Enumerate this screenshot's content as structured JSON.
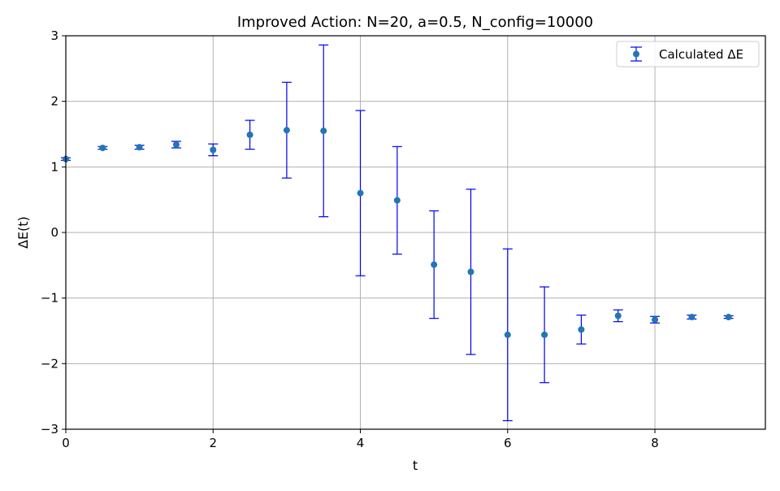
{
  "chart_data": {
    "type": "scatter",
    "title": "Improved Action: N=20, a=0.5, N_config=10000",
    "xlabel": "t",
    "ylabel": "ΔE(t)",
    "xlim": [
      0,
      9.5
    ],
    "ylim": [
      -3,
      3
    ],
    "xticks": [
      0,
      2,
      4,
      6,
      8
    ],
    "yticks": [
      -3,
      -2,
      -1,
      0,
      1,
      2,
      3
    ],
    "xtick_labels": [
      "0",
      "2",
      "4",
      "6",
      "8"
    ],
    "ytick_labels": [
      "−3",
      "−2",
      "−1",
      "0",
      "1",
      "2",
      "3"
    ],
    "grid": true,
    "legend_position": "top-right",
    "colors": {
      "marker": "#1f77b4",
      "errorbar": "#0000ee",
      "grid": "#b0b0b0",
      "axis": "#000000"
    },
    "series": [
      {
        "name": "Calculated ΔE",
        "x": [
          0,
          0.5,
          1.0,
          1.5,
          2.0,
          2.5,
          3.0,
          3.5,
          4.0,
          4.5,
          5.0,
          5.5,
          6.0,
          6.5,
          7.0,
          7.5,
          8.0,
          8.5,
          9.0
        ],
        "y": [
          1.12,
          1.29,
          1.3,
          1.34,
          1.26,
          1.49,
          1.56,
          1.55,
          0.6,
          0.49,
          -0.49,
          -0.6,
          -1.56,
          -1.56,
          -1.48,
          -1.27,
          -1.33,
          -1.29,
          -1.29
        ],
        "yerr": [
          0.02,
          0.02,
          0.03,
          0.05,
          0.09,
          0.22,
          0.73,
          1.31,
          1.26,
          0.82,
          0.82,
          1.26,
          1.31,
          0.73,
          0.22,
          0.09,
          0.05,
          0.03,
          0.02
        ]
      }
    ]
  }
}
